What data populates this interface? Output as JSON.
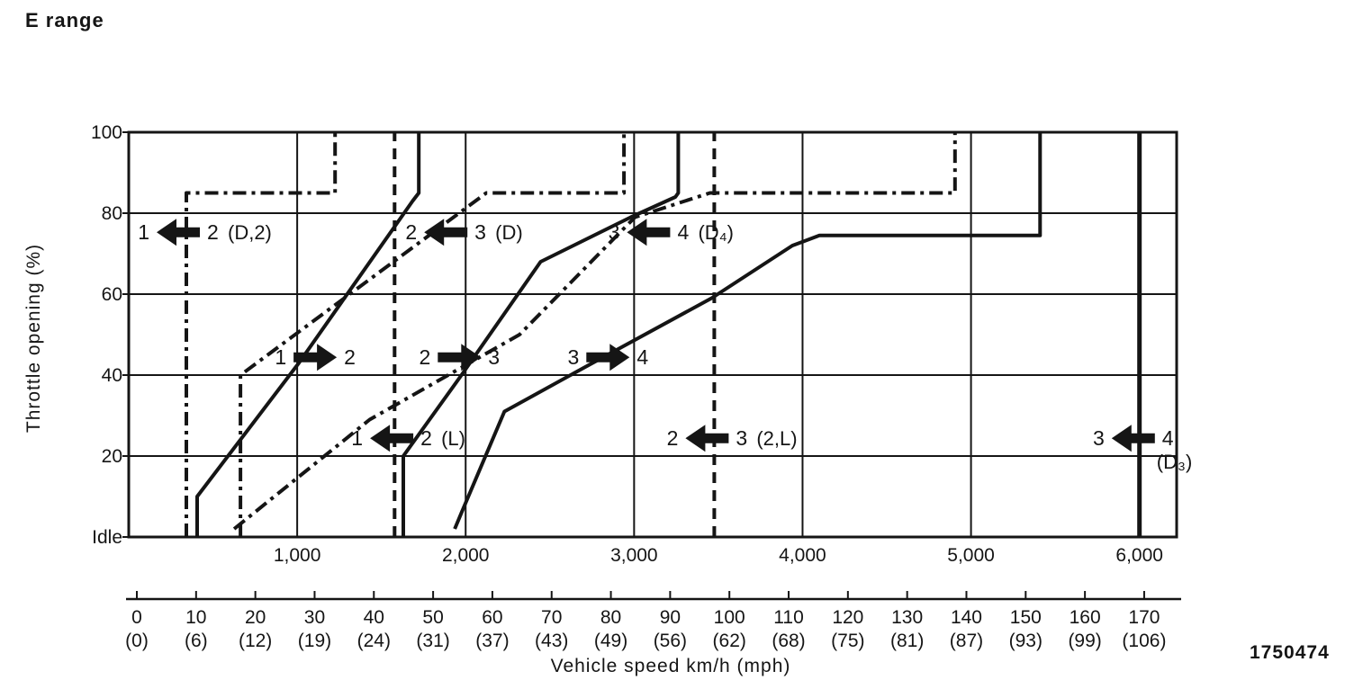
{
  "header": {
    "title": "E range"
  },
  "figure_number": "1750474",
  "colors": {
    "ink": "#151515",
    "background": "#ffffff"
  },
  "chart_data": {
    "type": "line",
    "title": "E range",
    "xlabel": "Vehicle speed   km/h  (mph)",
    "ylabel": "Throttle opening (%)",
    "grid": true,
    "xlim_output_rpm": [
      0,
      6230
    ],
    "ylim_throttle_pct": [
      0,
      100
    ],
    "x_axis_rpm": {
      "tick_labels": [
        "1,000",
        "2,000",
        "3,000",
        "4,000",
        "5,000",
        "6,000"
      ],
      "tick_values": [
        1000,
        2000,
        3000,
        4000,
        5000,
        6000
      ]
    },
    "x_axis_speed": {
      "kmh_labels": [
        "0",
        "10",
        "20",
        "30",
        "40",
        "50",
        "60",
        "70",
        "80",
        "90",
        "100",
        "110",
        "120",
        "130",
        "140",
        "150",
        "160",
        "170"
      ],
      "kmh_values": [
        0,
        10,
        20,
        30,
        40,
        50,
        60,
        70,
        80,
        90,
        100,
        110,
        120,
        130,
        140,
        150,
        160,
        170
      ],
      "mph_labels": [
        "(0)",
        "(6)",
        "(12)",
        "(19)",
        "(24)",
        "(31)",
        "(37)",
        "(43)",
        "(49)",
        "(56)",
        "(62)",
        "(68)",
        "(75)",
        "(81)",
        "(87)",
        "(93)",
        "(99)",
        "(106)"
      ]
    },
    "y_axis": {
      "tick_labels": [
        "100",
        "80",
        "60",
        "40",
        "20",
        "Idle"
      ],
      "tick_values": [
        100,
        80,
        60,
        40,
        20,
        0
      ]
    },
    "series": [
      {
        "name": "upshift-1-2",
        "meaning": "1 to 2 upshift",
        "line_style": "solid",
        "points": [
          [
            406,
            0
          ],
          [
            406,
            10
          ],
          [
            1010,
            43
          ],
          [
            1685,
            83
          ],
          [
            1722,
            85
          ],
          [
            1722,
            100
          ]
        ]
      },
      {
        "name": "upshift-2-3",
        "meaning": "2 to 3 upshift",
        "line_style": "solid",
        "points": [
          [
            1630,
            0
          ],
          [
            1630,
            20
          ],
          [
            1975,
            40
          ],
          [
            2445,
            68
          ],
          [
            2980,
            79
          ],
          [
            3245,
            84
          ],
          [
            3262,
            85
          ],
          [
            3262,
            100
          ]
        ]
      },
      {
        "name": "upshift-3-4",
        "meaning": "3 to 4 upshift",
        "line_style": "solid",
        "points": [
          [
            1935,
            2
          ],
          [
            1975,
            6
          ],
          [
            2230,
            31
          ],
          [
            2710,
            42
          ],
          [
            3460,
            59
          ],
          [
            3940,
            72
          ],
          [
            4100,
            74.5
          ],
          [
            5410,
            74.5
          ],
          [
            5410,
            100
          ]
        ]
      },
      {
        "name": "downshift-2-1-D2",
        "meaning": "2 to 1 downshift in D and 2",
        "line_style": "dashdot",
        "points": [
          [
            342,
            0
          ],
          [
            342,
            85
          ],
          [
            1225,
            85
          ],
          [
            1225,
            100
          ]
        ]
      },
      {
        "name": "downshift-3-2-D",
        "meaning": "3 to 2 downshift in D",
        "line_style": "dashdot",
        "points": [
          [
            663,
            0
          ],
          [
            663,
            40
          ],
          [
            2123,
            85
          ],
          [
            2940,
            85
          ],
          [
            2940,
            100
          ]
        ]
      },
      {
        "name": "downshift-4-3-D4",
        "meaning": "4 to 3 downshift in D4",
        "line_style": "dashdot",
        "points": [
          [
            626,
            2
          ],
          [
            1430,
            29
          ],
          [
            2320,
            50
          ],
          [
            3005,
            79
          ],
          [
            3450,
            85
          ],
          [
            4905,
            85
          ],
          [
            4905,
            100
          ]
        ]
      },
      {
        "name": "downshift-2-1-L",
        "meaning": "2 to 1 downshift in L",
        "line_style": "dashed",
        "points": [
          [
            1578,
            0
          ],
          [
            1578,
            100
          ]
        ]
      },
      {
        "name": "downshift-3-2-2L",
        "meaning": "3 to 2 downshift in 2 and L",
        "line_style": "dashed",
        "points": [
          [
            3476,
            0
          ],
          [
            3476,
            100
          ]
        ]
      },
      {
        "name": "downshift-4-3-D3",
        "meaning": "4 to 3 downshift in D3",
        "line_style": "solid-thick",
        "points": [
          [
            6000,
            0
          ],
          [
            6000,
            100
          ]
        ]
      }
    ],
    "annotations": [
      {
        "left": "1",
        "right": "2",
        "suffix": "(D,2)",
        "suffix_below": false,
        "dir": "left",
        "rpm": 294,
        "pct": 75.3
      },
      {
        "left": "2",
        "right": "3",
        "suffix": "(D)",
        "suffix_below": false,
        "dir": "left",
        "rpm": 1882,
        "pct": 75.3
      },
      {
        "left": "3",
        "right": "4",
        "suffix": "(D₄)",
        "suffix_below": false,
        "dir": "left",
        "rpm": 3086,
        "pct": 75.3
      },
      {
        "left": "1",
        "right": "2",
        "suffix": "",
        "suffix_below": false,
        "dir": "right",
        "rpm": 1107,
        "pct": 44.4
      },
      {
        "left": "2",
        "right": "3",
        "suffix": "",
        "suffix_below": false,
        "dir": "right",
        "rpm": 1963,
        "pct": 44.4
      },
      {
        "left": "3",
        "right": "4",
        "suffix": "",
        "suffix_below": false,
        "dir": "right",
        "rpm": 2845,
        "pct": 44.4
      },
      {
        "left": "1",
        "right": "2",
        "suffix": "(L)",
        "suffix_below": false,
        "dir": "left",
        "rpm": 1561,
        "pct": 24.4
      },
      {
        "left": "2",
        "right": "3",
        "suffix": "(2,L)",
        "suffix_below": false,
        "dir": "left",
        "rpm": 3433,
        "pct": 24.4
      },
      {
        "left": "3",
        "right": "4",
        "suffix": "(D₃)",
        "suffix_below": true,
        "dir": "left",
        "rpm": 5963,
        "pct": 24.4
      }
    ]
  }
}
